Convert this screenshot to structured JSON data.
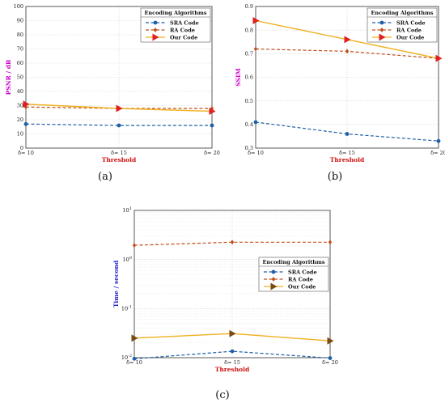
{
  "figure": {
    "panels": [
      "(a)",
      "(b)",
      "(c)"
    ]
  },
  "colors": {
    "sra": "#1f5fa8",
    "ra": "#c0501b",
    "our": "#f0b020",
    "our_marker_a": "#e02020",
    "our_marker_c": "#7a4a10",
    "ylabel_a": "#cc00cc",
    "ylabel_b": "#cc00cc",
    "ylabel_c": "#2020cc",
    "xlabel": "#cc1010"
  },
  "chart_data": [
    {
      "type": "line",
      "panel": "(a)",
      "x": [
        "δ= 10",
        "δ= 15",
        "δ= 20"
      ],
      "xlabel": "Threshold",
      "ylabel": "PSNR / dB",
      "ylim": [
        0,
        100
      ],
      "yticks": [
        "0",
        "10",
        "20",
        "30",
        "40",
        "50",
        "60",
        "70",
        "80",
        "90",
        "100"
      ],
      "grid": true,
      "legend_title": "Encoding Algorithms",
      "legend_position": "top-right",
      "series": [
        {
          "name": "SRA Code",
          "values": [
            17,
            16,
            16
          ]
        },
        {
          "name": "RA Code",
          "values": [
            29,
            28,
            28
          ]
        },
        {
          "name": "Our Code",
          "values": [
            31,
            28,
            26
          ]
        }
      ]
    },
    {
      "type": "line",
      "panel": "(b)",
      "x": [
        "δ= 10",
        "δ= 15",
        "δ= 20"
      ],
      "xlabel": "Threshold",
      "ylabel": "SSIM",
      "ylim": [
        0.3,
        0.9
      ],
      "yticks": [
        "0.3",
        "0.4",
        "0.5",
        "0.6",
        "0.7",
        "0.8",
        "0.9"
      ],
      "grid": true,
      "legend_title": "Encoding Algorithms",
      "legend_position": "top-right",
      "series": [
        {
          "name": "SRA Code",
          "values": [
            0.41,
            0.36,
            0.33
          ]
        },
        {
          "name": "RA Code",
          "values": [
            0.72,
            0.71,
            0.68
          ]
        },
        {
          "name": "Our Code",
          "values": [
            0.84,
            0.76,
            0.68
          ]
        }
      ]
    },
    {
      "type": "line",
      "panel": "(c)",
      "x": [
        "δ= 10",
        "δ= 15",
        "δ= 20"
      ],
      "xlabel": "Threshold",
      "ylabel": "Time / second",
      "yscale": "log",
      "ylim": [
        0.01,
        10
      ],
      "yticks": [
        "10-2",
        "10-1",
        "100",
        "101"
      ],
      "grid": true,
      "legend_title": "Encoding Algorithms",
      "legend_position": "center-right",
      "series": [
        {
          "name": "SRA Code",
          "values": [
            0.0095,
            0.0135,
            0.0098
          ]
        },
        {
          "name": "RA Code",
          "values": [
            1.95,
            2.25,
            2.25
          ]
        },
        {
          "name": "Our Code",
          "values": [
            0.025,
            0.031,
            0.022
          ]
        }
      ]
    }
  ]
}
